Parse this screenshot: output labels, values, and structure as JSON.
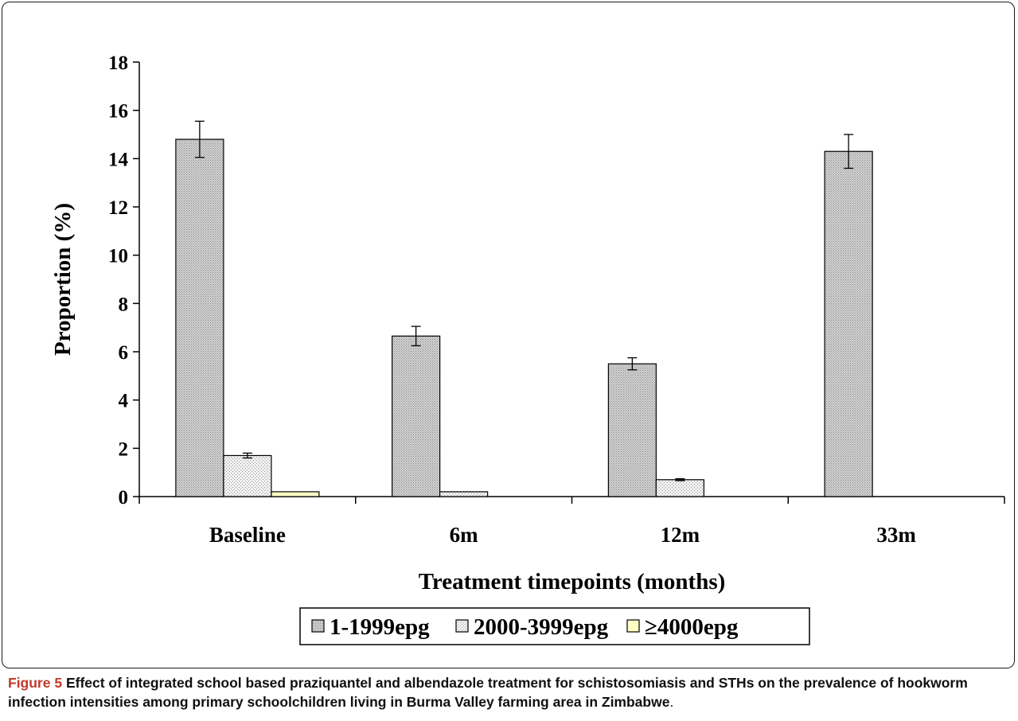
{
  "chart_data": {
    "type": "bar",
    "categories": [
      "Baseline",
      "6m",
      "12m",
      "33m"
    ],
    "series": [
      {
        "name": "1-1999epg",
        "values": [
          14.8,
          6.65,
          5.5,
          14.3
        ],
        "errors": [
          0.75,
          0.4,
          0.25,
          0.7
        ],
        "color": "#c8c8c8"
      },
      {
        "name": "2000-3999epg",
        "values": [
          1.7,
          0.2,
          0.7,
          0.0
        ],
        "errors": [
          0.1,
          0.0,
          0.04,
          0.0
        ],
        "color": "#e6e6e6"
      },
      {
        "name": "≥4000epg",
        "values": [
          0.2,
          0.0,
          0.0,
          0.0
        ],
        "errors": [
          0.0,
          0.0,
          0.0,
          0.0
        ],
        "color": "#ffffc6"
      }
    ],
    "title": "",
    "xlabel": "Treatment timepoints (months)",
    "ylabel": "Proportion (%)",
    "ylim": [
      0,
      18
    ],
    "yticks": [
      "0",
      "2",
      "4",
      "6",
      "8",
      "10",
      "12",
      "14",
      "16",
      "18"
    ],
    "grid": false,
    "legend": "bottom"
  },
  "caption": {
    "label": "Figure 5",
    "text": " Effect of integrated school based praziquantel and albendazole treatment for schistosomiasis and STHs on the prevalence of hookworm infection intensities among primary schoolchildren living in Burma Valley farming area in Zimbabwe",
    "end": "."
  }
}
